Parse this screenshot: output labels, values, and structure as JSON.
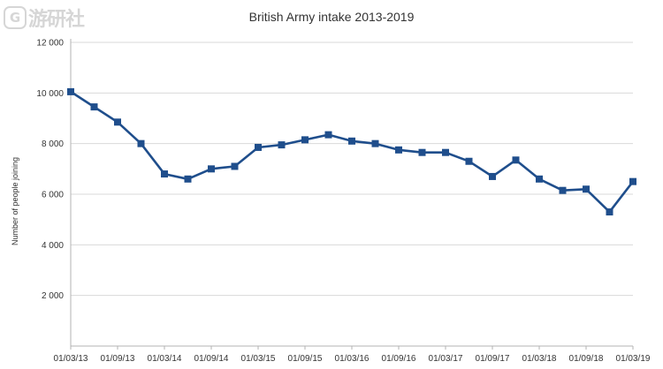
{
  "watermark": {
    "text": "游研社",
    "logo_glyph": "G"
  },
  "colors": {
    "series": "#1f4e8c",
    "grid": "#d9d9d9",
    "axis": "#b3b3b3"
  },
  "chart_data": {
    "type": "line",
    "title": "British Army intake 2013-2019",
    "ylabel": "Number of people joining",
    "xlabel": "",
    "ylim": [
      0,
      12000
    ],
    "yticks": [
      2000,
      4000,
      6000,
      8000,
      10000,
      12000
    ],
    "ytick_labels": [
      "2 000",
      "4 000",
      "6 000",
      "8 000",
      "10 000",
      "12 000"
    ],
    "xtick_labels": [
      "01/03/13",
      "01/09/13",
      "01/03/14",
      "01/09/14",
      "01/03/15",
      "01/09/15",
      "01/03/16",
      "01/09/16",
      "01/03/17",
      "01/09/17",
      "01/03/18",
      "01/09/18",
      "01/03/19"
    ],
    "grid": "horizontal",
    "legend": "none",
    "series": [
      {
        "marker": "square",
        "x": [
          "01/03/13",
          "01/06/13",
          "01/09/13",
          "01/12/13",
          "01/03/14",
          "01/06/14",
          "01/09/14",
          "01/12/14",
          "01/03/15",
          "01/06/15",
          "01/09/15",
          "01/12/15",
          "01/03/16",
          "01/06/16",
          "01/09/16",
          "01/12/16",
          "01/03/17",
          "01/06/17",
          "01/09/17",
          "01/12/17",
          "01/03/18",
          "01/06/18",
          "01/09/18",
          "01/12/18",
          "01/03/19"
        ],
        "values": [
          10050,
          9450,
          8850,
          8000,
          6800,
          6600,
          7000,
          7100,
          7850,
          7950,
          8150,
          8350,
          8100,
          8000,
          7750,
          7650,
          7650,
          7300,
          6700,
          7350,
          6600,
          6150,
          6200,
          5300,
          6500
        ]
      }
    ]
  }
}
